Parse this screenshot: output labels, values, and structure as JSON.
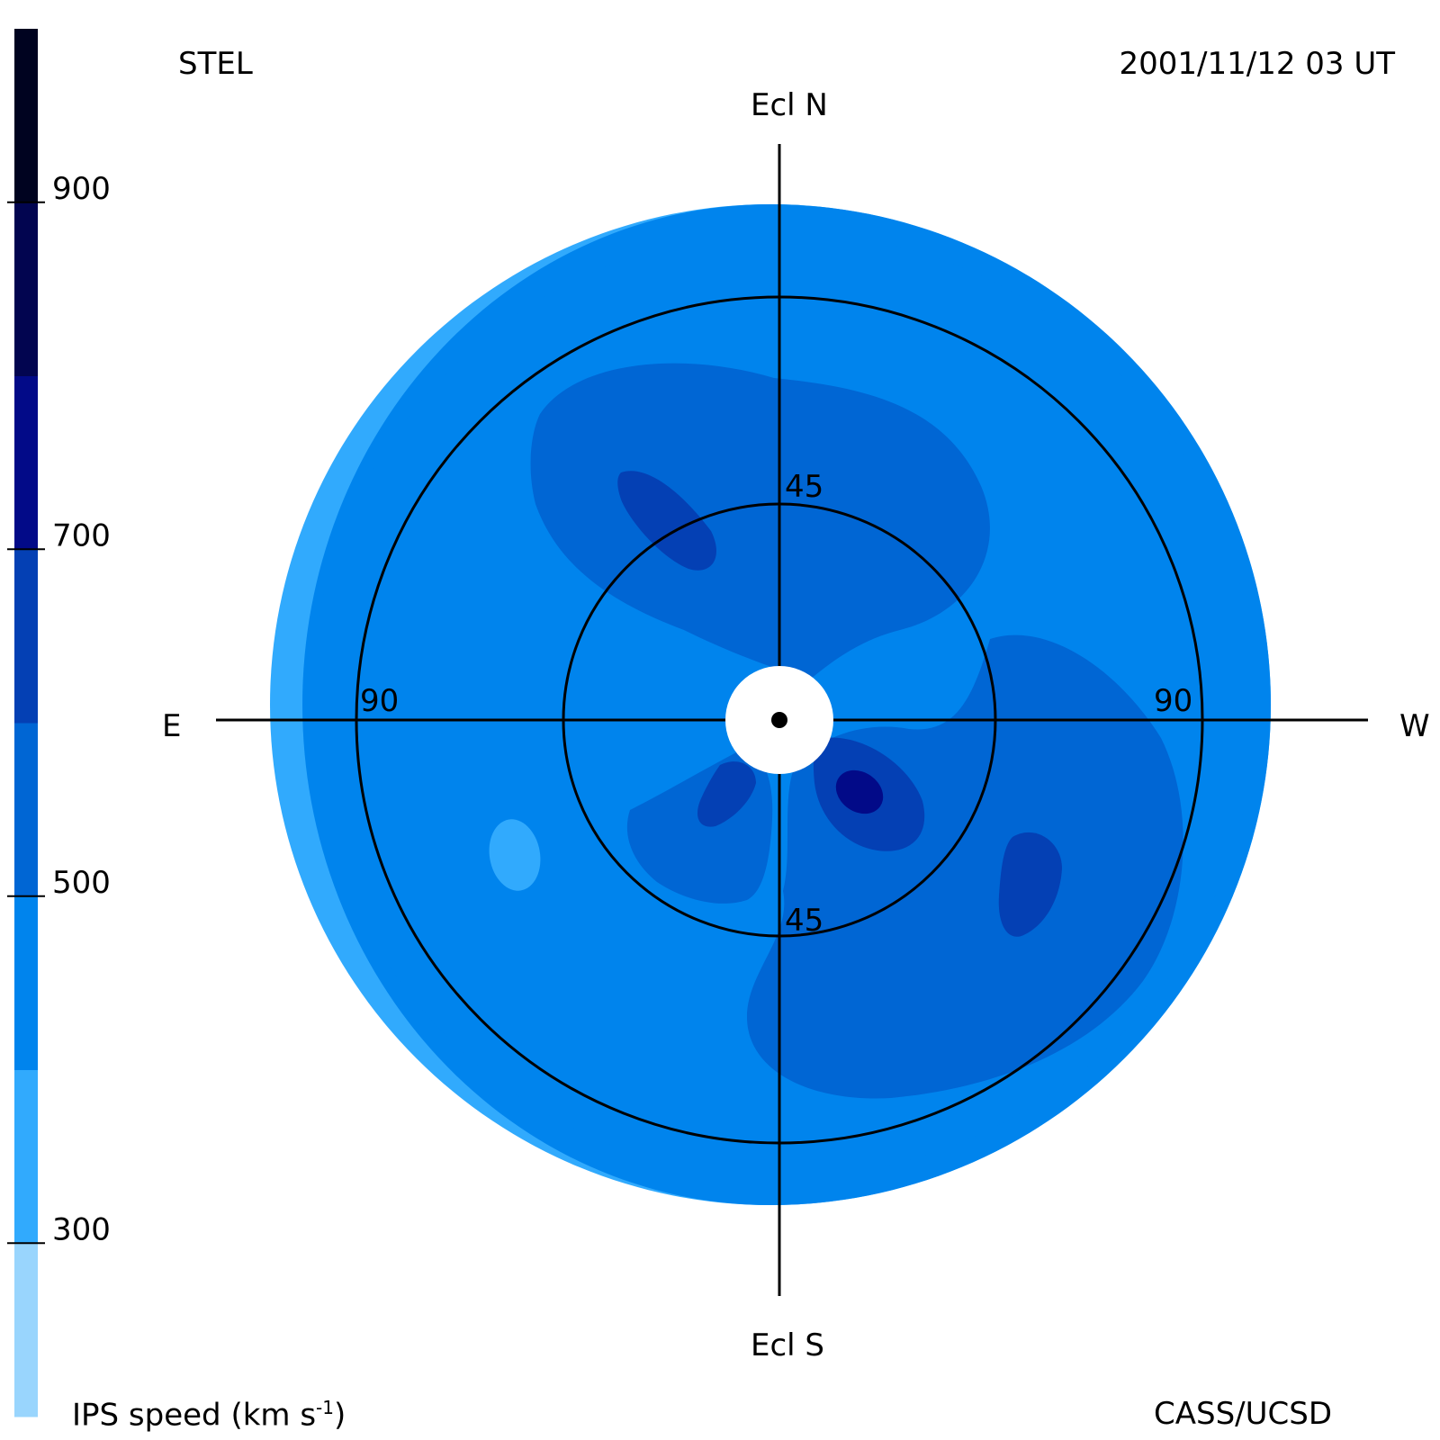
{
  "header": {
    "left_label": "STEL",
    "timestamp": "2001/11/12 03 UT"
  },
  "footer": {
    "colorbar_label": "IPS speed (km s",
    "colorbar_label_exp": "-1",
    "colorbar_label_close": ")",
    "credit": "CASS/UCSD"
  },
  "directions": {
    "north": "Ecl N",
    "south": "Ecl S",
    "east": "E",
    "west": "W"
  },
  "colors": {
    "background": "#ffffff",
    "axes": "#000000",
    "colorbar_bins": [
      "#99d5fd",
      "#31aafd",
      "#0084ed",
      "#0066d4",
      "#0440b4",
      "#020a88",
      "#020550",
      "#000320"
    ]
  },
  "chart_data": {
    "type": "heatmap",
    "projection": "fish-eye sky map centered on the Sun (elongation radius, degrees)",
    "colorbar": {
      "label": "IPS speed (km s-1)",
      "range": [
        200,
        1000
      ],
      "ticks": [
        {
          "value": 300,
          "label": "300"
        },
        {
          "value": 500,
          "label": "500"
        },
        {
          "value": 700,
          "label": "700"
        },
        {
          "value": 900,
          "label": "900"
        }
      ],
      "bins": [
        {
          "from": 200,
          "to": 300,
          "color": "#99d5fd"
        },
        {
          "from": 300,
          "to": 400,
          "color": "#31aafd"
        },
        {
          "from": 400,
          "to": 500,
          "color": "#0084ed"
        },
        {
          "from": 500,
          "to": 600,
          "color": "#0066d4"
        },
        {
          "from": 600,
          "to": 700,
          "color": "#0440b4"
        },
        {
          "from": 700,
          "to": 800,
          "color": "#020a88"
        },
        {
          "from": 800,
          "to": 900,
          "color": "#020550"
        },
        {
          "from": 900,
          "to": 1000,
          "color": "#000320"
        }
      ]
    },
    "elongation_circles": [
      {
        "deg": 45,
        "labels": [
          "45",
          "45"
        ]
      },
      {
        "deg": 90,
        "labels": [
          "90",
          "90"
        ]
      }
    ],
    "map_extent_deg": 108,
    "sun_occulter_deg": 12,
    "speed_regions": [
      {
        "description": "outer rim band, east side",
        "speed_bin": [
          300,
          400
        ]
      },
      {
        "description": "background sky",
        "speed_bin": [
          400,
          500
        ]
      },
      {
        "description": "north-east lobe",
        "speed_bin": [
          500,
          600
        ]
      },
      {
        "description": "south-west lobe",
        "speed_bin": [
          500,
          600
        ]
      },
      {
        "description": "south-east lobe",
        "speed_bin": [
          500,
          600
        ]
      },
      {
        "description": "compact enhancements near Sun",
        "speed_bin": [
          600,
          700
        ]
      },
      {
        "description": "compact core south-west of Sun",
        "speed_bin": [
          700,
          800
        ]
      },
      {
        "description": "small low-speed spot south-east",
        "speed_bin": [
          300,
          400
        ]
      }
    ]
  }
}
